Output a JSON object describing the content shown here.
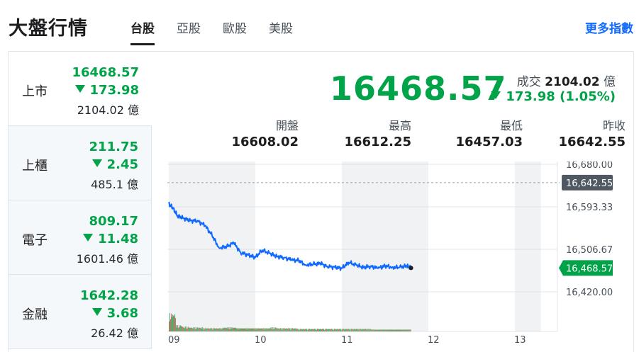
{
  "header": {
    "title": "大盤行情",
    "tabs": [
      {
        "label": "台股",
        "active": true
      },
      {
        "label": "亞股",
        "active": false
      },
      {
        "label": "歐股",
        "active": false
      },
      {
        "label": "美股",
        "active": false
      }
    ],
    "more_link": "更多指數"
  },
  "sidebar": {
    "items": [
      {
        "name": "上市",
        "value": "16468.57",
        "change": "173.98",
        "volume": "2104.02 億",
        "direction": "down",
        "active": true
      },
      {
        "name": "上櫃",
        "value": "211.75",
        "change": "2.45",
        "volume": "485.1 億",
        "direction": "down",
        "active": false
      },
      {
        "name": "電子",
        "value": "809.17",
        "change": "11.48",
        "volume": "1601.46 億",
        "direction": "down",
        "active": false
      },
      {
        "name": "金融",
        "value": "1642.28",
        "change": "3.68",
        "volume": "26.42 億",
        "direction": "down",
        "active": false
      }
    ]
  },
  "summary": {
    "price": "16468.57",
    "trade_label": "成交",
    "trade_value": "2104.02",
    "trade_unit": "億",
    "change": "173.98 (1.05%)",
    "open_label": "開盤",
    "open": "16608.02",
    "high_label": "最高",
    "high": "16612.25",
    "low_label": "最低",
    "low": "16457.03",
    "prev_label": "昨收",
    "prev": "16642.55"
  },
  "colors": {
    "down": "#00a348",
    "line": "#0f69ff",
    "accent": "#0f69ff"
  },
  "chart_data": {
    "type": "line",
    "y_ticks": [
      "16,680.00",
      "16,593.33",
      "16,506.67",
      "16,420.00"
    ],
    "x_ticks": [
      "09",
      "10",
      "11",
      "12",
      "13"
    ],
    "ylim": [
      16420,
      16680
    ],
    "prev_close": 16642.55,
    "prev_close_label": "16,642.55",
    "last": 16468.57,
    "last_label": "16,468.57",
    "x": [
      9.0,
      9.05,
      9.1,
      9.17,
      9.25,
      9.33,
      9.42,
      9.5,
      9.58,
      9.67,
      9.75,
      9.83,
      9.92,
      10.0,
      10.08,
      10.17,
      10.25,
      10.33,
      10.42,
      10.5,
      10.58,
      10.67,
      10.75,
      10.83,
      10.92,
      11.0,
      11.08,
      11.17,
      11.25,
      11.33,
      11.42,
      11.5,
      11.58,
      11.67,
      11.75,
      11.8
    ],
    "values": [
      16600,
      16590,
      16575,
      16570,
      16565,
      16565,
      16555,
      16535,
      16510,
      16512,
      16520,
      16500,
      16495,
      16490,
      16505,
      16498,
      16492,
      16490,
      16485,
      16484,
      16475,
      16476,
      16478,
      16472,
      16470,
      16468,
      16480,
      16474,
      16470,
      16472,
      16468,
      16473,
      16470,
      16470,
      16473,
      16469
    ],
    "volume": [
      26,
      9,
      7,
      6,
      6,
      5,
      5,
      5,
      6,
      6,
      5,
      5,
      5,
      5,
      5,
      6,
      5,
      5,
      5,
      4,
      4,
      4,
      4,
      4,
      4,
      4,
      4,
      4,
      4,
      4,
      3,
      3,
      3,
      3,
      3,
      3
    ]
  }
}
